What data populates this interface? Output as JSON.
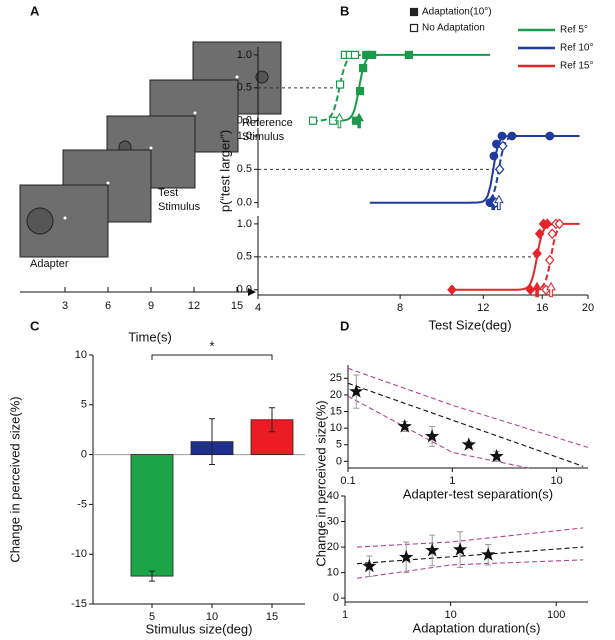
{
  "diagram": {
    "panel": "A",
    "adapter_label": "Adapter",
    "test_label": [
      "Test",
      "Stimulus"
    ],
    "reference_label": [
      "Reference",
      "Stimulus"
    ],
    "time_ticks": [
      "3",
      "6",
      "9",
      "12",
      "15"
    ],
    "time_label": "Time(s)"
  },
  "chart_data": [
    {
      "type": "line",
      "panel": "B",
      "name": "Ref 5°",
      "color": "#1a9a4a",
      "xscale": "log",
      "xlim": [
        4,
        20
      ],
      "ylim": [
        -0.08,
        1.12
      ],
      "yticks": [
        {
          "value": 0,
          "label": "0.0"
        },
        {
          "value": 0.5,
          "label": "0.5"
        },
        {
          "value": 1,
          "label": "1.0"
        }
      ],
      "reference_y": 0.5,
      "series": [
        {
          "name": "Adaptation(10°)",
          "marker": "square",
          "filled": true,
          "x": [
            6.45,
            6.58,
            6.68,
            6.78,
            6.98,
            8.35
          ],
          "values": [
            0,
            0.45,
            0.8,
            1,
            1,
            1
          ],
          "fit": {
            "pse": 6.55,
            "slope": 70,
            "range": [
              6.0,
              12.4
            ]
          }
        },
        {
          "name": "No Adaptation",
          "marker": "square",
          "filled": false,
          "x": [
            5.23,
            5.77,
            5.97,
            6.11,
            6.26,
            6.42
          ],
          "values": [
            0,
            0,
            0.55,
            1,
            1,
            1
          ],
          "fit": {
            "pse": 5.95,
            "slope": 60,
            "range": [
              5.2,
              6.6
            ]
          }
        }
      ]
    },
    {
      "type": "line",
      "name": "Ref 10°",
      "color": "#1f3b9c",
      "ylabel": "p(“test larger”)",
      "xscale": "log",
      "xlim": [
        4,
        20
      ],
      "ylim": [
        -0.08,
        1.12
      ],
      "yticks": [
        {
          "value": 0,
          "label": "0.0"
        },
        {
          "value": 0.5,
          "label": "0.5"
        },
        {
          "value": 1,
          "label": "1.0"
        }
      ],
      "reference_y": 0.5,
      "series": [
        {
          "marker": "circle",
          "filled": true,
          "x": [
            12.4,
            12.64,
            12.8,
            13.15,
            13.8,
            16.6
          ],
          "values": [
            0,
            0.7,
            0.88,
            1,
            1,
            1
          ],
          "fit": {
            "pse": 12.6,
            "slope": 80,
            "range": [
              6.9,
              19.2
            ]
          }
        },
        {
          "marker": "diamond",
          "filled": false,
          "x": [
            12.75,
            13.0,
            13.2
          ],
          "values": [
            0,
            0.5,
            0.85
          ],
          "fit": {
            "pse": 12.95,
            "slope": 70,
            "range": [
              12.4,
              13.6
            ]
          }
        }
      ]
    },
    {
      "type": "line",
      "name": "Ref 15°",
      "color": "#e4252b",
      "xlabel": "Test Size(deg)",
      "xscale": "log",
      "xlim": [
        4,
        20
      ],
      "xticks": [
        4,
        8,
        12,
        16,
        20
      ],
      "ylim": [
        -0.08,
        1.12
      ],
      "yticks": [
        {
          "value": 0,
          "label": "0.0"
        },
        {
          "value": 0.5,
          "label": "0.5"
        },
        {
          "value": 1,
          "label": "1.0"
        }
      ],
      "reference_y": 0.5,
      "series": [
        {
          "marker": "diamond",
          "filled": true,
          "x": [
            10.3,
            15.1,
            15.6,
            15.8,
            16.1,
            16.4
          ],
          "values": [
            0,
            0,
            0.55,
            0.85,
            1,
            1
          ],
          "fit": {
            "pse": 15.6,
            "slope": 70,
            "range": [
              10.3,
              19.2
            ]
          }
        },
        {
          "marker": "diamond",
          "filled": false,
          "x": [
            16.3,
            16.6,
            16.8,
            17.1,
            17.4
          ],
          "values": [
            0,
            0.45,
            0.85,
            1,
            1
          ],
          "fit": {
            "pse": 16.7,
            "slope": 70,
            "range": [
              15.9,
              17.6
            ]
          }
        }
      ]
    },
    {
      "type": "bar",
      "panel": "C",
      "ylabel": "Change in perceived size(%)",
      "xlabel": "Stimulus size(deg)",
      "categories": [
        "5",
        "10",
        "15"
      ],
      "values": [
        -12.2,
        1.3,
        3.5
      ],
      "errors": [
        0.5,
        2.3,
        1.2
      ],
      "colors": [
        "#1ba548",
        "#1f2f8f",
        "#ec1c24"
      ],
      "ylim": [
        -15,
        10
      ],
      "yticks": [
        10,
        5,
        0,
        -5,
        -10,
        -15
      ],
      "bracket": {
        "from": 0,
        "to": 2,
        "y": 10,
        "label": "*"
      }
    },
    {
      "type": "scatter",
      "panel": "D",
      "ylabel": "Change in perceived size(%)",
      "xlabel": "Adapter-test separation(s)",
      "xscale": "log",
      "xlim": [
        0.1,
        20
      ],
      "xticks": [
        0.1,
        1,
        10
      ],
      "ylim": [
        -2,
        29
      ],
      "yticks": [
        0,
        5,
        10,
        15,
        20,
        25
      ],
      "color": "#111111",
      "x": [
        0.12,
        0.35,
        0.64,
        1.44,
        2.66
      ],
      "values": [
        21,
        10.5,
        7.5,
        5,
        1.5
      ],
      "errors": [
        5,
        1.5,
        3,
        1,
        1.5
      ],
      "fit_lines": [
        {
          "color": "#111111",
          "x": [
            0.1,
            18
          ],
          "values": [
            23.5,
            -1.5
          ]
        },
        {
          "color": "#b8408f",
          "x": [
            0.1,
            1,
            20
          ],
          "values": [
            28,
            16.9,
            4.2
          ]
        },
        {
          "color": "#b8408f",
          "x": [
            0.1,
            1,
            5.4
          ],
          "values": [
            19.6,
            2.7,
            -2
          ]
        }
      ]
    },
    {
      "type": "scatter",
      "xlabel": "Adaptation duration(s)",
      "xscale": "log",
      "xlim": [
        1,
        200
      ],
      "xticks": [
        1,
        10,
        100
      ],
      "ylim": [
        -1.5,
        40
      ],
      "yticks": [
        0,
        10,
        20,
        30,
        40
      ],
      "color": "#111111",
      "x": [
        1.7,
        3.8,
        6.7,
        12.3,
        22.7
      ],
      "values": [
        12.5,
        16,
        18.7,
        19,
        17
      ],
      "errors": [
        4,
        6,
        6,
        7,
        4
      ],
      "fit_lines": [
        {
          "color": "#111111",
          "x": [
            1.3,
            180
          ],
          "values": [
            13.5,
            20
          ]
        },
        {
          "color": "#b8408f",
          "x": [
            1.3,
            10,
            180
          ],
          "values": [
            20,
            22,
            27.5
          ]
        },
        {
          "color": "#b8408f",
          "x": [
            1.3,
            10,
            180
          ],
          "values": [
            7.8,
            13,
            15
          ]
        }
      ]
    }
  ]
}
